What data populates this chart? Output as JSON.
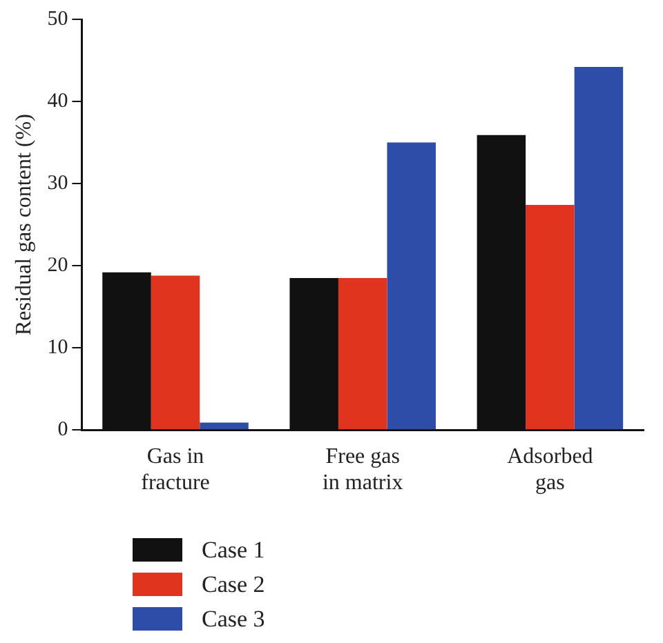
{
  "chart_data": {
    "type": "bar",
    "ylabel": "Residual gas content (%)",
    "categories": [
      "Gas in fracture",
      "Free gas in matrix",
      "Adsorbed gas"
    ],
    "series": [
      {
        "name": "Case 1",
        "color": "#111111",
        "values": [
          19.2,
          18.5,
          35.9
        ]
      },
      {
        "name": "Case 2",
        "color": "#e0341f",
        "values": [
          18.8,
          18.5,
          27.4
        ]
      },
      {
        "name": "Case 3",
        "color": "#2e4da8",
        "values": [
          0.9,
          35.0,
          44.2
        ]
      }
    ],
    "ylim": [
      0,
      50
    ],
    "yticks": [
      0,
      10,
      20,
      30,
      40,
      50
    ],
    "grid": false,
    "legend": "bottom"
  }
}
